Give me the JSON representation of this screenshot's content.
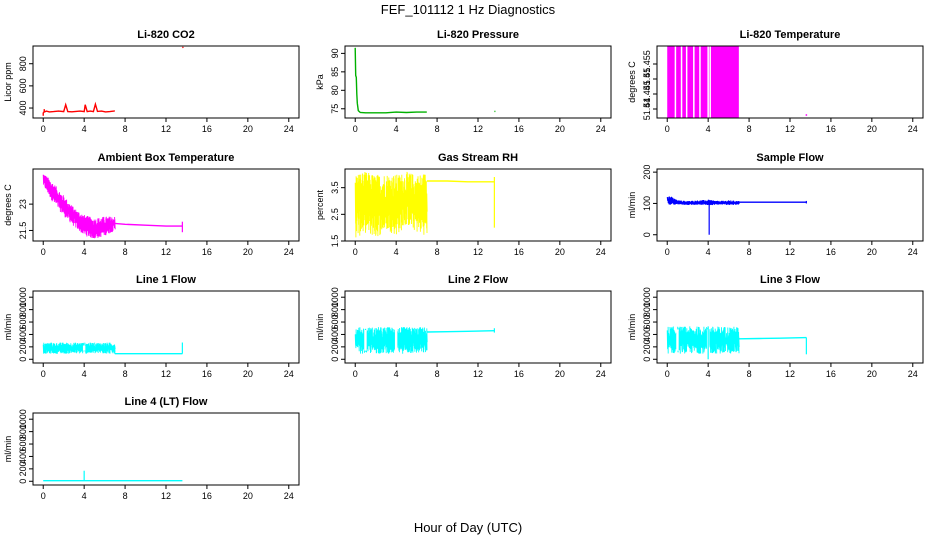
{
  "figure": {
    "title": "FEF_101112  1 Hz Diagnostics",
    "xlabel": "Hour of Day (UTC)",
    "x_ticks": [
      0,
      4,
      8,
      12,
      16,
      20,
      24
    ],
    "xlim": [
      -1,
      25
    ]
  },
  "chart_data": [
    {
      "type": "line",
      "title": "Li-820 CO2",
      "ylabel": "Licor ppm",
      "color": "#ff0000",
      "ylim": [
        310,
        960
      ],
      "yticks": [
        400,
        600,
        800
      ],
      "segments": [
        {
          "x": [
            0.0,
            0.3,
            0.6,
            1.0,
            1.5,
            2.0,
            2.2,
            2.4,
            2.8,
            3.2,
            3.6,
            4.0,
            4.1,
            4.3,
            4.6,
            4.9,
            5.1,
            5.3,
            5.7,
            6.1,
            6.5,
            6.9,
            7.0
          ],
          "y": [
            360,
            372,
            365,
            368,
            372,
            368,
            430,
            368,
            366,
            370,
            372,
            368,
            430,
            368,
            372,
            368,
            435,
            370,
            372,
            365,
            368,
            372,
            375
          ],
          "spikes": [
            {
              "x": 0.0,
              "y": 330
            },
            {
              "x": 0.1,
              "y": 390
            }
          ]
        },
        {
          "x": [
            13.6,
            13.7
          ],
          "y": [
            945,
            950
          ]
        }
      ]
    },
    {
      "type": "line",
      "title": "Li-820 Pressure",
      "ylabel": "kPa",
      "color": "#00b000",
      "ylim": [
        72.5,
        92
      ],
      "yticks": [
        75,
        80,
        85,
        90
      ],
      "segments": [
        {
          "x": [
            0.0,
            0.05,
            0.1,
            0.15,
            0.2,
            0.3,
            0.5,
            1.0,
            2.0,
            3.0,
            4.0,
            5.0,
            6.0,
            7.0
          ],
          "y": [
            91.5,
            84,
            83.5,
            79,
            76.5,
            74.5,
            74.0,
            73.9,
            73.9,
            73.9,
            74.1,
            74.0,
            74.1,
            74.1
          ]
        },
        {
          "x": [
            13.6,
            13.7
          ],
          "y": [
            74.3,
            74.3
          ]
        }
      ]
    },
    {
      "type": "area",
      "title": "Li-820 Temperature",
      "ylabel": "degrees C",
      "color": "#ff00ff",
      "ylim": [
        51.437,
        51.461
      ],
      "yticks": [
        51.44,
        51.445,
        51.45,
        51.455
      ],
      "fill": {
        "x0": 0.0,
        "x1": 7.0,
        "y0": 51.437,
        "y1": 51.461
      },
      "gaps": [
        0.8,
        1.4,
        1.9,
        2.6,
        3.2,
        4.0,
        4.2
      ],
      "dots": [
        {
          "x": 13.6,
          "y": 51.438
        }
      ]
    },
    {
      "type": "line",
      "title": "Ambient Box Temperature",
      "ylabel": "degrees C",
      "color": "#ff00ff",
      "ylim": [
        20.9,
        25.0
      ],
      "yticks": [
        21.5,
        23.0
      ],
      "noise_band": {
        "x": [
          0.0,
          1.0,
          2.0,
          3.0,
          4.0,
          5.0,
          6.0,
          7.0
        ],
        "ymax": [
          24.8,
          24.2,
          23.5,
          22.8,
          22.4,
          22.2,
          22.3,
          22.3
        ],
        "ymin": [
          24.0,
          23.0,
          22.3,
          21.7,
          21.2,
          21.0,
          21.2,
          21.5
        ]
      },
      "segments": [
        {
          "x": [
            7.0,
            8.0,
            10.0,
            12.0,
            13.6
          ],
          "y": [
            21.9,
            21.85,
            21.8,
            21.75,
            21.75
          ]
        }
      ],
      "vlines": [
        {
          "x": 13.6,
          "y0": 21.4,
          "y1": 22.0
        }
      ]
    },
    {
      "type": "line",
      "title": "Gas Stream RH",
      "ylabel": "percent",
      "color": "#ffff00",
      "ylim": [
        1.5,
        4.2
      ],
      "yticks": [
        1.5,
        2.5,
        3.5
      ],
      "noise_band": {
        "x": [
          0.0,
          1.0,
          2.0,
          3.0,
          4.0,
          5.0,
          6.0,
          7.0
        ],
        "ymax": [
          4.1,
          4.1,
          4.0,
          4.05,
          4.0,
          4.1,
          4.0,
          4.1
        ],
        "ymin": [
          1.6,
          1.8,
          1.6,
          1.9,
          1.7,
          2.1,
          1.8,
          1.7
        ]
      },
      "segments": [
        {
          "x": [
            7.0,
            9.0,
            11.0,
            13.6
          ],
          "y": [
            3.75,
            3.75,
            3.72,
            3.72
          ]
        }
      ],
      "vlines": [
        {
          "x": 13.6,
          "y0": 2.0,
          "y1": 3.9
        }
      ]
    },
    {
      "type": "line",
      "title": "Sample Flow",
      "ylabel": "ml/min",
      "color": "#0000ff",
      "ylim": [
        -20,
        210
      ],
      "yticks": [
        0,
        100,
        200
      ],
      "noise_band": {
        "x": [
          0.0,
          1.0,
          2.0,
          3.0,
          4.0,
          5.0,
          6.0,
          7.0
        ],
        "ymax": [
          130,
          110,
          108,
          110,
          112,
          108,
          110,
          108
        ],
        "ymin": [
          95,
          96,
          95,
          96,
          94,
          96,
          95,
          96
        ]
      },
      "segments": [
        {
          "x": [
            7.0,
            9.0,
            11.0,
            13.6
          ],
          "y": [
            104,
            104,
            104,
            104
          ]
        }
      ],
      "vlines": [
        {
          "x": 4.1,
          "y0": 0,
          "y1": 104
        },
        {
          "x": 13.6,
          "y0": 100,
          "y1": 108
        }
      ]
    },
    {
      "type": "line",
      "title": "Line 1 Flow",
      "ylabel": "ml/min",
      "color": "#00ffff",
      "ylim": [
        -60,
        1100
      ],
      "yticks": [
        0,
        200,
        400,
        600,
        800,
        1000
      ],
      "noise_band": {
        "x": [
          0.0,
          7.0
        ],
        "ymax": [
          270,
          270
        ],
        "ymin": [
          90,
          90
        ]
      },
      "gaps": [
        4.0
      ],
      "segments": [
        {
          "x": [
            7.0,
            9.0,
            11.0,
            13.6
          ],
          "y": [
            90,
            90,
            90,
            90
          ]
        }
      ],
      "vlines": [
        {
          "x": 13.6,
          "y0": 90,
          "y1": 270
        }
      ]
    },
    {
      "type": "line",
      "title": "Line 2 Flow",
      "ylabel": "ml/min",
      "color": "#00ffff",
      "ylim": [
        -60,
        1100
      ],
      "yticks": [
        0,
        200,
        400,
        600,
        800,
        1000
      ],
      "noise_band": {
        "x": [
          0.0,
          7.0
        ],
        "ymax": [
          520,
          520
        ],
        "ymin": [
          90,
          90
        ]
      },
      "gaps": [
        1.0,
        4.0
      ],
      "segments": [
        {
          "x": [
            7.0,
            9.0,
            11.0,
            13.6
          ],
          "y": [
            440,
            445,
            450,
            460
          ]
        }
      ],
      "vlines": [
        {
          "x": 13.6,
          "y0": 430,
          "y1": 500
        }
      ]
    },
    {
      "type": "line",
      "title": "Line 3 Flow",
      "ylabel": "ml/min",
      "color": "#00ffff",
      "ylim": [
        -60,
        1100
      ],
      "yticks": [
        0,
        200,
        400,
        600,
        800,
        1000
      ],
      "noise_band": {
        "x": [
          0.0,
          7.0
        ],
        "ymax": [
          530,
          530
        ],
        "ymin": [
          90,
          90
        ]
      },
      "gaps": [
        1.0,
        4.0
      ],
      "segments": [
        {
          "x": [
            7.0,
            9.0,
            11.0,
            13.6
          ],
          "y": [
            330,
            335,
            340,
            350
          ]
        }
      ],
      "vlines": [
        {
          "x": 4.0,
          "y0": 0,
          "y1": 530
        },
        {
          "x": 13.6,
          "y0": 80,
          "y1": 350
        }
      ]
    },
    {
      "type": "line",
      "title": "Line 4 (LT) Flow",
      "ylabel": "ml/min",
      "color": "#00ffff",
      "ylim": [
        -60,
        1100
      ],
      "yticks": [
        0,
        200,
        400,
        600,
        800,
        1000
      ],
      "segments": [
        {
          "x": [
            0.0,
            4.0,
            7.0,
            10.0,
            13.6
          ],
          "y": [
            10,
            10,
            10,
            10,
            10
          ]
        }
      ],
      "vlines": [
        {
          "x": 4.0,
          "y0": 10,
          "y1": 170
        }
      ]
    }
  ]
}
